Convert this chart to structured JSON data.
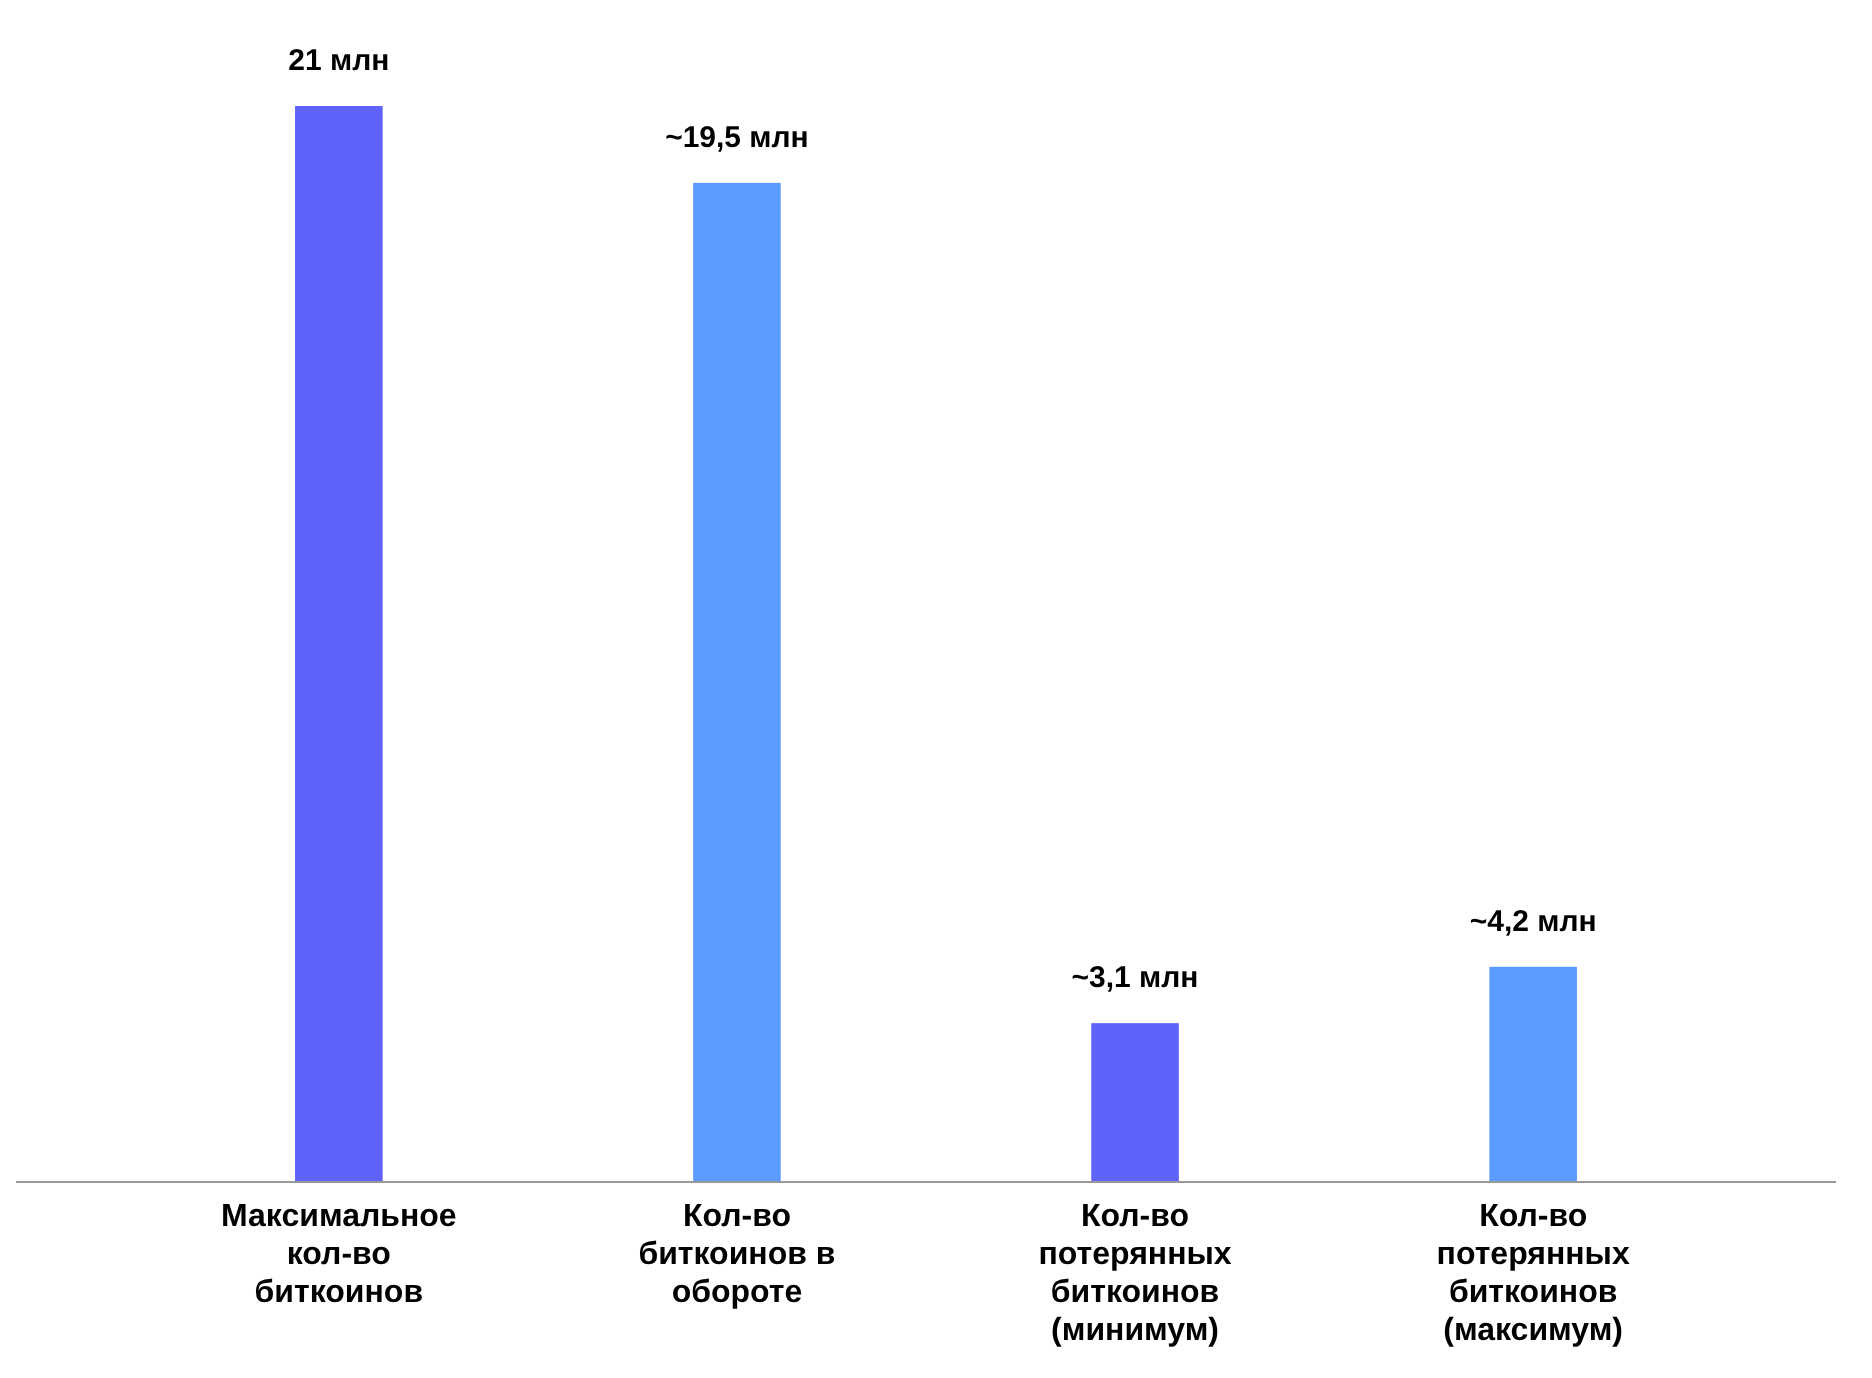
{
  "chart_data": {
    "type": "bar",
    "categories": [
      "Максимальное кол-во биткоинов",
      "Кол-во биткоинов в обороте",
      "Кол-во потерянных биткоинов (минимум)",
      "Кол-во потерянных биткоинов (максимум)"
    ],
    "values": [
      21,
      19.5,
      3.1,
      4.2
    ],
    "colors": [
      "#5f63fb",
      "#5c9bff",
      "#5f63fb",
      "#5c9bff"
    ],
    "value_labels": [
      "21 млн",
      "~19,5 млн",
      "~3,1 млн",
      "~4,2 млн"
    ]
  }
}
